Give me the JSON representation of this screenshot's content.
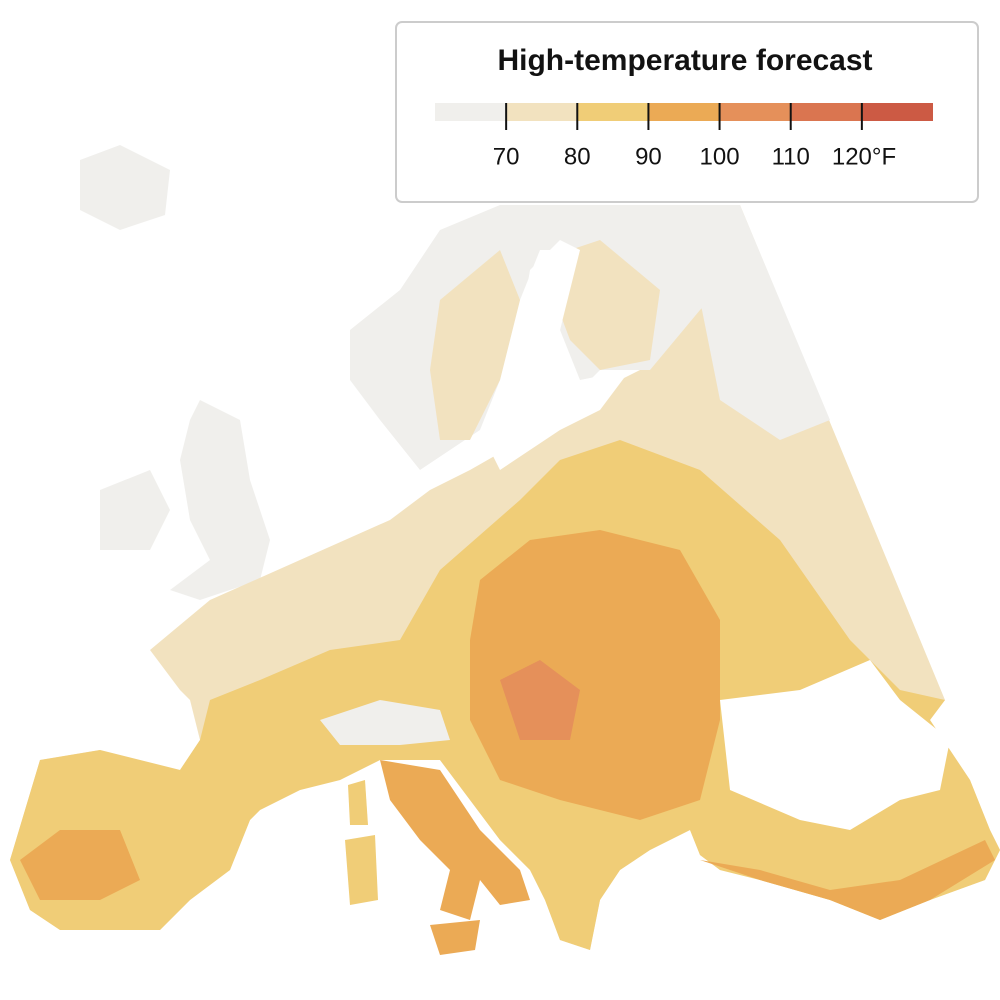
{
  "legend": {
    "title": "High-temperature forecast",
    "range": [
      60,
      130
    ],
    "ticks": [
      70,
      80,
      90,
      100,
      110,
      {
        "value": 120,
        "label": "120°F"
      }
    ],
    "colors": [
      "#f0efec",
      "#f2e2bf",
      "#f0cd77",
      "#ebaa55",
      "#e5905a",
      "#da7550",
      "#cc5a44"
    ]
  }
}
